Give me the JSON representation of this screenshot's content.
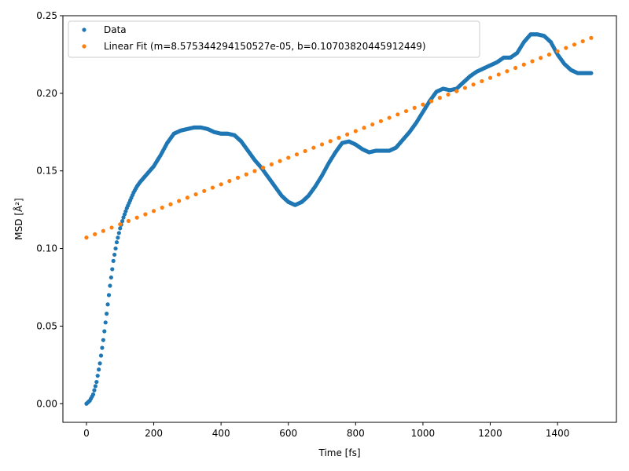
{
  "chart_data": {
    "type": "scatter",
    "xlabel": "Time [fs]",
    "ylabel": "MSD [Å²]",
    "xlim": [
      -70,
      1575
    ],
    "ylim": [
      -0.012,
      0.25
    ],
    "x_ticks": [
      0,
      200,
      400,
      600,
      800,
      1000,
      1200,
      1400
    ],
    "x_tick_labels": [
      "0",
      "200",
      "400",
      "600",
      "800",
      "1000",
      "1200",
      "1400"
    ],
    "y_ticks": [
      0.0,
      0.05,
      0.1,
      0.15,
      0.2,
      0.25
    ],
    "y_tick_labels": [
      "0.00",
      "0.05",
      "0.10",
      "0.15",
      "0.20",
      "0.25"
    ],
    "grid": false,
    "legend_position": "top-left",
    "series": [
      {
        "name": "Data",
        "color": "#1f77b4",
        "points": [
          [
            0,
            0.0
          ],
          [
            10,
            0.002
          ],
          [
            20,
            0.006
          ],
          [
            30,
            0.014
          ],
          [
            40,
            0.026
          ],
          [
            50,
            0.041
          ],
          [
            60,
            0.058
          ],
          [
            70,
            0.076
          ],
          [
            80,
            0.092
          ],
          [
            90,
            0.104
          ],
          [
            100,
            0.113
          ],
          [
            110,
            0.12
          ],
          [
            120,
            0.126
          ],
          [
            130,
            0.131
          ],
          [
            140,
            0.136
          ],
          [
            150,
            0.14
          ],
          [
            160,
            0.143
          ],
          [
            180,
            0.148
          ],
          [
            200,
            0.153
          ],
          [
            220,
            0.16
          ],
          [
            240,
            0.168
          ],
          [
            260,
            0.174
          ],
          [
            280,
            0.176
          ],
          [
            300,
            0.177
          ],
          [
            320,
            0.178
          ],
          [
            340,
            0.178
          ],
          [
            360,
            0.177
          ],
          [
            380,
            0.175
          ],
          [
            400,
            0.174
          ],
          [
            420,
            0.174
          ],
          [
            440,
            0.173
          ],
          [
            460,
            0.169
          ],
          [
            480,
            0.163
          ],
          [
            500,
            0.157
          ],
          [
            520,
            0.152
          ],
          [
            540,
            0.146
          ],
          [
            560,
            0.14
          ],
          [
            580,
            0.134
          ],
          [
            600,
            0.13
          ],
          [
            620,
            0.128
          ],
          [
            640,
            0.13
          ],
          [
            660,
            0.134
          ],
          [
            680,
            0.14
          ],
          [
            700,
            0.147
          ],
          [
            720,
            0.155
          ],
          [
            740,
            0.162
          ],
          [
            760,
            0.168
          ],
          [
            780,
            0.169
          ],
          [
            800,
            0.167
          ],
          [
            820,
            0.164
          ],
          [
            840,
            0.162
          ],
          [
            860,
            0.163
          ],
          [
            880,
            0.163
          ],
          [
            900,
            0.163
          ],
          [
            920,
            0.165
          ],
          [
            940,
            0.17
          ],
          [
            960,
            0.175
          ],
          [
            980,
            0.181
          ],
          [
            1000,
            0.188
          ],
          [
            1020,
            0.195
          ],
          [
            1040,
            0.201
          ],
          [
            1060,
            0.203
          ],
          [
            1080,
            0.202
          ],
          [
            1100,
            0.203
          ],
          [
            1120,
            0.207
          ],
          [
            1140,
            0.211
          ],
          [
            1160,
            0.214
          ],
          [
            1180,
            0.216
          ],
          [
            1200,
            0.218
          ],
          [
            1220,
            0.22
          ],
          [
            1240,
            0.223
          ],
          [
            1260,
            0.223
          ],
          [
            1280,
            0.226
          ],
          [
            1300,
            0.233
          ],
          [
            1320,
            0.238
          ],
          [
            1340,
            0.238
          ],
          [
            1360,
            0.237
          ],
          [
            1380,
            0.233
          ],
          [
            1400,
            0.225
          ],
          [
            1420,
            0.219
          ],
          [
            1440,
            0.215
          ],
          [
            1460,
            0.213
          ],
          [
            1480,
            0.213
          ],
          [
            1500,
            0.213
          ]
        ]
      },
      {
        "name": "Linear Fit (m=8.575344294150527e-05, b=0.10703820445912449)",
        "color": "#ff7f0e",
        "slope": 8.575344294150527e-05,
        "intercept": 0.10703820445912449,
        "x_start": 0,
        "x_end": 1500,
        "x_step": 25
      }
    ]
  }
}
